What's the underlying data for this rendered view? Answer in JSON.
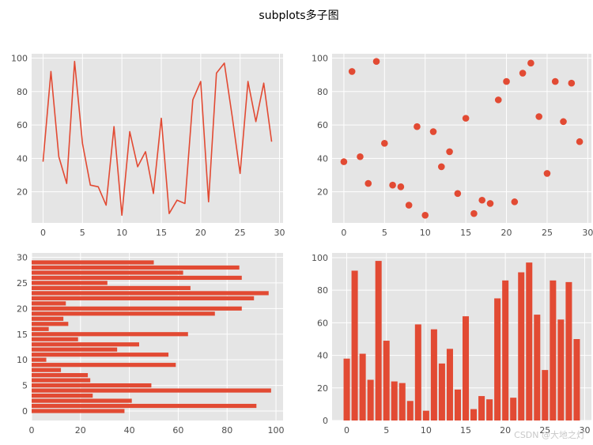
{
  "figure": {
    "suptitle": "subplots多子图",
    "watermark": "CSDN @大地之灯",
    "axes_facecolor": "#e5e5e5",
    "grid_color": "#ffffff",
    "series_color": "#e24a33"
  },
  "chart_data": [
    {
      "type": "line",
      "x": [
        0,
        1,
        2,
        3,
        4,
        5,
        6,
        7,
        8,
        9,
        10,
        11,
        12,
        13,
        14,
        15,
        16,
        17,
        18,
        19,
        20,
        21,
        22,
        23,
        24,
        25,
        26,
        27,
        28,
        29
      ],
      "values": [
        38,
        92,
        41,
        25,
        98,
        49,
        24,
        23,
        12,
        59,
        6,
        56,
        35,
        44,
        19,
        64,
        7,
        15,
        13,
        75,
        86,
        14,
        91,
        97,
        65,
        31,
        86,
        62,
        85,
        50
      ],
      "xlim": [
        -1.45,
        30.45
      ],
      "ylim": [
        1.4,
        102.6
      ],
      "xticks": [
        0,
        5,
        10,
        15,
        20,
        25,
        30
      ],
      "yticks": [
        20,
        40,
        60,
        80,
        100
      ],
      "grid": true
    },
    {
      "type": "scatter",
      "x": [
        0,
        1,
        2,
        3,
        4,
        5,
        6,
        7,
        8,
        9,
        10,
        11,
        12,
        13,
        14,
        15,
        16,
        17,
        18,
        19,
        20,
        21,
        22,
        23,
        24,
        25,
        26,
        27,
        28,
        29
      ],
      "values": [
        38,
        92,
        41,
        25,
        98,
        49,
        24,
        23,
        12,
        59,
        6,
        56,
        35,
        44,
        19,
        64,
        7,
        15,
        13,
        75,
        86,
        14,
        91,
        97,
        65,
        31,
        86,
        62,
        85,
        50
      ],
      "xlim": [
        -1.45,
        30.45
      ],
      "ylim": [
        1.4,
        102.6
      ],
      "xticks": [
        0,
        5,
        10,
        15,
        20,
        25,
        30
      ],
      "yticks": [
        20,
        40,
        60,
        80,
        100
      ],
      "grid": true
    },
    {
      "type": "bar",
      "orientation": "horizontal",
      "categories": [
        0,
        1,
        2,
        3,
        4,
        5,
        6,
        7,
        8,
        9,
        10,
        11,
        12,
        13,
        14,
        15,
        16,
        17,
        18,
        19,
        20,
        21,
        22,
        23,
        24,
        25,
        26,
        27,
        28,
        29
      ],
      "values": [
        38,
        92,
        41,
        25,
        98,
        49,
        24,
        23,
        12,
        59,
        6,
        56,
        35,
        44,
        19,
        64,
        7,
        15,
        13,
        75,
        86,
        14,
        91,
        97,
        65,
        31,
        86,
        62,
        85,
        50
      ],
      "xlim": [
        0,
        102.9
      ],
      "ylim": [
        -1.85,
        30.85
      ],
      "xticks": [
        0,
        20,
        40,
        60,
        80,
        100
      ],
      "yticks": [
        0,
        5,
        10,
        15,
        20,
        25,
        30
      ],
      "grid": true
    },
    {
      "type": "bar",
      "orientation": "vertical",
      "categories": [
        0,
        1,
        2,
        3,
        4,
        5,
        6,
        7,
        8,
        9,
        10,
        11,
        12,
        13,
        14,
        15,
        16,
        17,
        18,
        19,
        20,
        21,
        22,
        23,
        24,
        25,
        26,
        27,
        28,
        29
      ],
      "values": [
        38,
        92,
        41,
        25,
        98,
        49,
        24,
        23,
        12,
        59,
        6,
        56,
        35,
        44,
        19,
        64,
        7,
        15,
        13,
        75,
        86,
        14,
        91,
        97,
        65,
        31,
        86,
        62,
        85,
        50
      ],
      "xlim": [
        -1.85,
        30.85
      ],
      "ylim": [
        0,
        102.9
      ],
      "xticks": [
        0,
        5,
        10,
        15,
        20,
        25,
        30
      ],
      "yticks": [
        0,
        20,
        40,
        60,
        80,
        100
      ],
      "grid": true
    }
  ]
}
